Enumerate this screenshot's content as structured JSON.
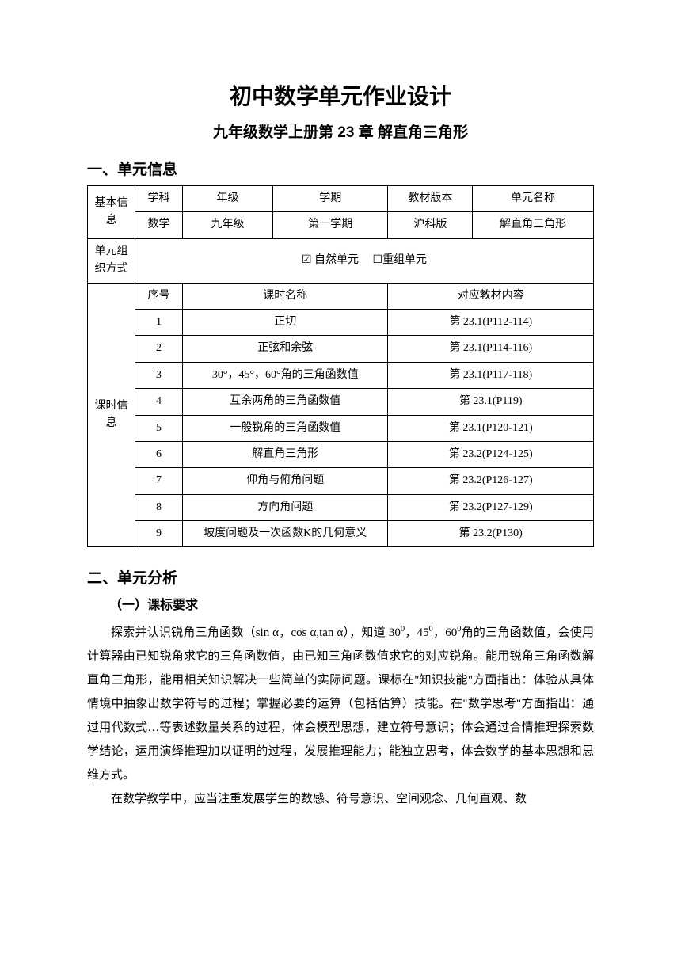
{
  "title": "初中数学单元作业设计",
  "subtitle": "九年级数学上册第 23 章  解直角三角形",
  "section1": {
    "heading": "一、单元信息",
    "basic_info": {
      "label": "基本信息",
      "headers": [
        "学科",
        "年级",
        "学期",
        "教材版本",
        "单元名称"
      ],
      "values": [
        "数学",
        "九年级",
        "第一学期",
        "沪科版",
        "解直角三角形"
      ]
    },
    "unit_org": {
      "label": "单元组织方式",
      "option1": "自然单元",
      "option2": "重组单元"
    },
    "lesson_info": {
      "label": "课时信息",
      "headers": [
        "序号",
        "课时名称",
        "对应教材内容"
      ],
      "rows": [
        {
          "seq": "1",
          "name": "正切",
          "content": "第 23.1(P112-114)"
        },
        {
          "seq": "2",
          "name": "正弦和余弦",
          "content": "第 23.1(P114-116)"
        },
        {
          "seq": "3",
          "name": "30°，45°，60°角的三角函数值",
          "content": "第 23.1(P117-118)"
        },
        {
          "seq": "4",
          "name": "互余两角的三角函数值",
          "content": "第 23.1(P119)"
        },
        {
          "seq": "5",
          "name": "一般锐角的三角函数值",
          "content": "第 23.1(P120-121)"
        },
        {
          "seq": "6",
          "name": "解直角三角形",
          "content": "第 23.2(P124-125)"
        },
        {
          "seq": "7",
          "name": "仰角与俯角问题",
          "content": "第 23.2(P126-127)"
        },
        {
          "seq": "8",
          "name": "方向角问题",
          "content": "第 23.2(P127-129)"
        },
        {
          "seq": "9",
          "name": "坡度问题及一次函数K的几何意义",
          "content": "第 23.2(P130)"
        }
      ]
    }
  },
  "section2": {
    "heading": "二、单元分析",
    "sub_heading": "（一）课标要求",
    "para1_a": "探索并认识锐角三角函数（sin α，cos α,tan α），知道 30",
    "para1_b": "，45",
    "para1_c": "，60",
    "para1_d": "角的三角函数值，会使用计算器由已知锐角求它的三角函数值，由已知三角函数值求它的对应锐角。能用锐角三角函数解直角三角形，能用相关知识解决一些简单的实际问题。课标在\"知识技能\"方面指出：体验从具体情境中抽象出数学符号的过程；掌握必要的运算（包括估算）技能。在\"数学思考\"方面指出：通过用代数式…等表述数量关系的过程，体会模型思想，建立符号意识；体会通过合情推理探索数学结论，运用演绎推理加以证明的过程，发展推理能力；能独立思考，体会数学的基本思想和思维方式。",
    "para2": "在数学教学中，应当注重发展学生的数感、符号意识、空间观念、几何直观、数"
  }
}
